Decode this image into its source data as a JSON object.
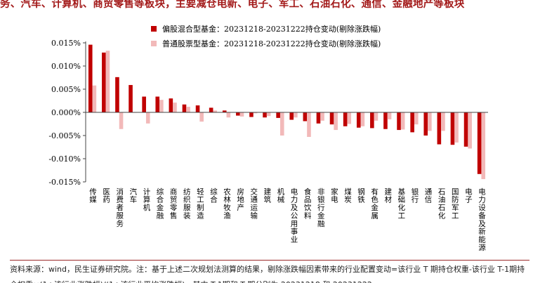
{
  "title_fragment": "务、汽车、计算机、商贸零售等板块，主要减仓电新、电子、军工、石油石化、通信、金融地产等板块",
  "source_text": "资料来源：wind，民生证券研究院。注：基于上述二次规划法测算的结果，剔除涨跌幅因素带来的行业配置变动=该行业 T 期持仓权重-该行业 T-1期持仓权重×(1+该行业涨跌幅)/(1+该行业平均涨跌幅)，其中 T-1期和 T 期分别为 20231218 和 20231222",
  "colors": {
    "series1": "#c00000",
    "series2": "#f2b9b9",
    "title": "#a31a1a"
  },
  "chart_data": {
    "type": "bar",
    "ylim": [
      -0.015,
      0.015
    ],
    "yticks": [
      -0.015,
      -0.01,
      -0.005,
      0,
      0.005,
      0.01,
      0.015
    ],
    "ytick_labels": [
      "-0.015%",
      "-0.010%",
      "-0.005%",
      "0.000%",
      "0.005%",
      "0.010%",
      "0.015%"
    ],
    "categories": [
      "传媒",
      "医药",
      "消费者服务",
      "汽车",
      "计算机",
      "综合金融",
      "商贸零售",
      "纺织服装",
      "轻工制造",
      "综合",
      "农林牧渔",
      "房地产",
      "交通运输",
      "建筑",
      "机械",
      "电力及公用事业",
      "食品饮料",
      "非银行金融",
      "家电",
      "煤炭",
      "钢铁",
      "有色金属",
      "建材",
      "基础化工",
      "银行",
      "通信",
      "石油石化",
      "国防军工",
      "电子",
      "电力设备及新能源"
    ],
    "series": [
      {
        "name": "偏股混合型基金：20231218-20231222持仓变动(剔除涨跌幅)",
        "values": [
          0.0146,
          0.0129,
          0.0076,
          0.0059,
          0.0034,
          0.0034,
          0.003,
          0.0017,
          0.0015,
          0.001,
          0.0004,
          -0.0007,
          -0.001,
          -0.0011,
          -0.0012,
          -0.0016,
          -0.0019,
          -0.0024,
          -0.0026,
          -0.003,
          -0.0033,
          -0.0034,
          -0.0036,
          -0.0038,
          -0.0043,
          -0.005,
          -0.0069,
          -0.007,
          -0.0074,
          -0.0133
        ]
      },
      {
        "name": "普通股票型基金：20231218-20231222持仓变动(剔除涨跌幅)",
        "values": [
          0.0058,
          0.0133,
          -0.0036,
          -0.0001,
          -0.0024,
          0.0027,
          0.0021,
          0.0012,
          -0.002,
          0.0004,
          -0.0011,
          -0.0009,
          -0.0002,
          -0.0008,
          -0.005,
          -0.0011,
          -0.0053,
          -0.0018,
          -0.0038,
          -0.0025,
          -0.003,
          -0.0018,
          -0.0015,
          -0.0037,
          -0.0026,
          -0.004,
          -0.004,
          -0.0065,
          -0.0078,
          -0.0144
        ]
      }
    ]
  }
}
